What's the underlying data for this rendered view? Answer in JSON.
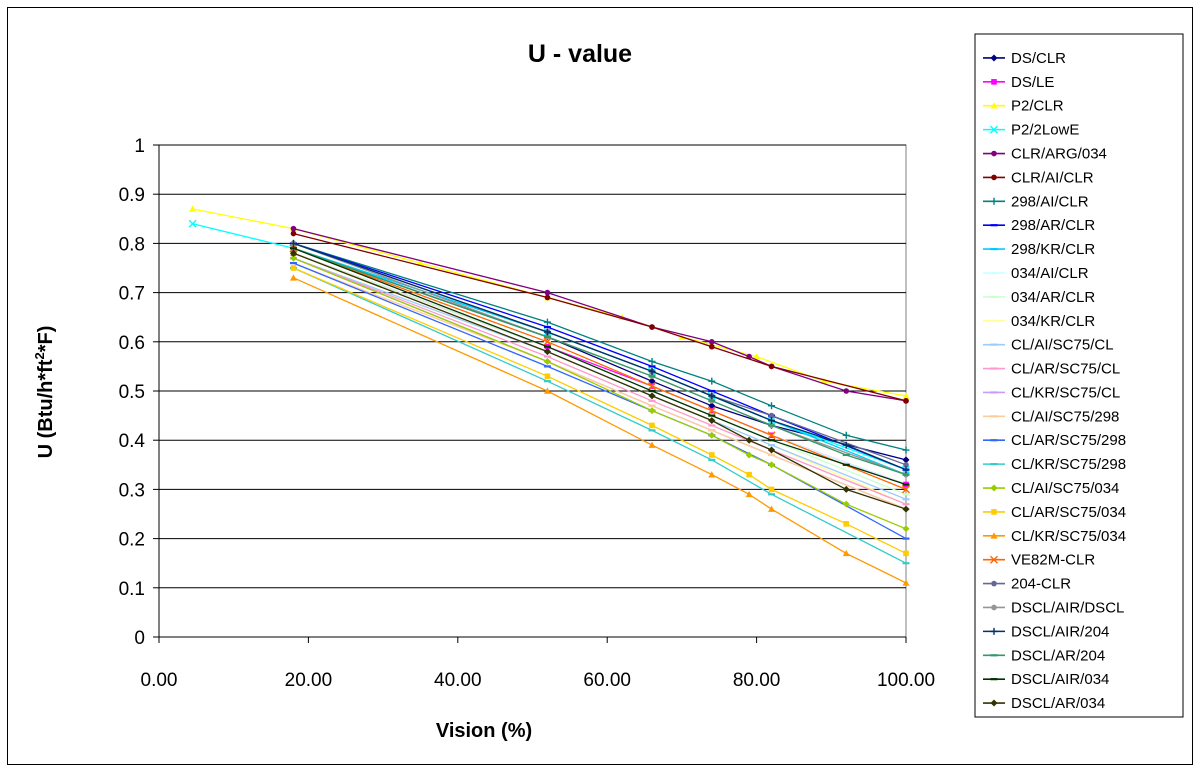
{
  "chart_data": {
    "type": "line",
    "title": "U - value",
    "xlabel": "Vision (%)",
    "ylabel_parts": [
      "U (Btu/h*ft",
      "2",
      "*F)"
    ],
    "xlim": [
      0,
      100
    ],
    "ylim": [
      0,
      1
    ],
    "x_ticks": [
      "0.00",
      "20.00",
      "40.00",
      "60.00",
      "80.00",
      "100.00"
    ],
    "y_ticks": [
      "0",
      "0.1",
      "0.2",
      "0.3",
      "0.4",
      "0.5",
      "0.6",
      "0.7",
      "0.8",
      "0.9",
      "1"
    ],
    "grid": "horizontal",
    "legend_position": "right",
    "series": [
      {
        "name": "DS/CLR",
        "color": "#000080",
        "marker": "diamond",
        "points": [
          [
            18,
            0.79
          ],
          [
            52,
            0.61
          ],
          [
            66,
            0.52
          ],
          [
            74,
            0.47
          ],
          [
            82,
            0.43
          ],
          [
            100,
            0.36
          ]
        ]
      },
      {
        "name": "DS/LE",
        "color": "#ff00ff",
        "marker": "square",
        "points": [
          [
            18,
            0.78
          ],
          [
            52,
            0.59
          ],
          [
            66,
            0.51
          ],
          [
            74,
            0.46
          ],
          [
            82,
            0.41
          ],
          [
            100,
            0.31
          ]
        ]
      },
      {
        "name": "P2/CLR",
        "color": "#ffff00",
        "marker": "triangle",
        "points": [
          [
            4.5,
            0.87
          ],
          [
            18,
            0.83
          ],
          [
            35,
            0.76
          ],
          [
            52,
            0.69
          ],
          [
            62,
            0.65
          ],
          [
            70,
            0.61
          ],
          [
            80,
            0.57
          ],
          [
            89,
            0.52
          ],
          [
            100,
            0.49
          ]
        ]
      },
      {
        "name": "P2/2LowE",
        "color": "#00ffff",
        "marker": "x",
        "points": [
          [
            4.5,
            0.84
          ],
          [
            18,
            0.79
          ],
          [
            52,
            0.62
          ],
          [
            66,
            0.54
          ],
          [
            74,
            0.49
          ],
          [
            82,
            0.44
          ],
          [
            100,
            0.34
          ]
        ]
      },
      {
        "name": "CLR/ARG/034",
        "color": "#800080",
        "marker": "circle",
        "points": [
          [
            18,
            0.83
          ],
          [
            52,
            0.7
          ],
          [
            66,
            0.63
          ],
          [
            74,
            0.6
          ],
          [
            79,
            0.57
          ],
          [
            82,
            0.55
          ],
          [
            92,
            0.5
          ],
          [
            100,
            0.48
          ]
        ]
      },
      {
        "name": "CLR/AI/CLR",
        "color": "#800000",
        "marker": "circle",
        "points": [
          [
            18,
            0.82
          ],
          [
            52,
            0.69
          ],
          [
            66,
            0.63
          ],
          [
            74,
            0.59
          ],
          [
            82,
            0.55
          ],
          [
            100,
            0.48
          ]
        ]
      },
      {
        "name": "298/AI/CLR",
        "color": "#008080",
        "marker": "plus",
        "points": [
          [
            18,
            0.8
          ],
          [
            52,
            0.64
          ],
          [
            66,
            0.56
          ],
          [
            74,
            0.52
          ],
          [
            82,
            0.47
          ],
          [
            92,
            0.41
          ],
          [
            100,
            0.38
          ]
        ]
      },
      {
        "name": "298/AR/CLR",
        "color": "#0000ff",
        "marker": "dash",
        "points": [
          [
            18,
            0.8
          ],
          [
            52,
            0.63
          ],
          [
            66,
            0.55
          ],
          [
            74,
            0.5
          ],
          [
            82,
            0.45
          ],
          [
            100,
            0.34
          ]
        ]
      },
      {
        "name": "298/KR/CLR",
        "color": "#00ccff",
        "marker": "dash",
        "points": [
          [
            18,
            0.79
          ],
          [
            52,
            0.62
          ],
          [
            66,
            0.54
          ],
          [
            74,
            0.49
          ],
          [
            82,
            0.44
          ],
          [
            100,
            0.33
          ]
        ]
      },
      {
        "name": "034/AI/CLR",
        "color": "#ccffff",
        "marker": "dash",
        "points": [
          [
            18,
            0.79
          ],
          [
            52,
            0.6
          ],
          [
            66,
            0.51
          ],
          [
            74,
            0.46
          ],
          [
            82,
            0.41
          ],
          [
            100,
            0.31
          ]
        ]
      },
      {
        "name": "034/AR/CLR",
        "color": "#ccffcc",
        "marker": "dash",
        "points": [
          [
            18,
            0.78
          ],
          [
            52,
            0.59
          ],
          [
            66,
            0.5
          ],
          [
            74,
            0.45
          ],
          [
            82,
            0.4
          ],
          [
            100,
            0.29
          ]
        ]
      },
      {
        "name": "034/KR/CLR",
        "color": "#ffff99",
        "marker": "dash",
        "points": [
          [
            18,
            0.78
          ],
          [
            52,
            0.58
          ],
          [
            66,
            0.49
          ],
          [
            74,
            0.44
          ],
          [
            82,
            0.39
          ],
          [
            100,
            0.27
          ]
        ]
      },
      {
        "name": "CL/AI/SC75/CL",
        "color": "#99ccff",
        "marker": "dash",
        "points": [
          [
            18,
            0.77
          ],
          [
            52,
            0.58
          ],
          [
            66,
            0.49
          ],
          [
            74,
            0.44
          ],
          [
            82,
            0.39
          ],
          [
            100,
            0.28
          ]
        ]
      },
      {
        "name": "CL/AR/SC75/CL",
        "color": "#ff99cc",
        "marker": "dash",
        "points": [
          [
            18,
            0.77
          ],
          [
            52,
            0.57
          ],
          [
            66,
            0.48
          ],
          [
            74,
            0.43
          ],
          [
            82,
            0.38
          ],
          [
            100,
            0.27
          ]
        ]
      },
      {
        "name": "CL/KR/SC75/CL",
        "color": "#cc99ff",
        "marker": "dash",
        "points": [
          [
            18,
            0.77
          ],
          [
            52,
            0.56
          ],
          [
            66,
            0.47
          ],
          [
            74,
            0.42
          ],
          [
            82,
            0.37
          ],
          [
            100,
            0.26
          ]
        ]
      },
      {
        "name": "CL/AI/SC75/298",
        "color": "#ffcc99",
        "marker": "dash",
        "points": [
          [
            18,
            0.76
          ],
          [
            52,
            0.56
          ],
          [
            66,
            0.47
          ],
          [
            74,
            0.42
          ],
          [
            82,
            0.37
          ],
          [
            100,
            0.26
          ]
        ]
      },
      {
        "name": "CL/AR/SC75/298",
        "color": "#3366ff",
        "marker": "dash",
        "points": [
          [
            18,
            0.76
          ],
          [
            52,
            0.55
          ],
          [
            66,
            0.46
          ],
          [
            74,
            0.41
          ],
          [
            82,
            0.35
          ],
          [
            100,
            0.2
          ]
        ]
      },
      {
        "name": "CL/KR/SC75/298",
        "color": "#33cccc",
        "marker": "dash",
        "points": [
          [
            18,
            0.75
          ],
          [
            52,
            0.52
          ],
          [
            66,
            0.42
          ],
          [
            74,
            0.36
          ],
          [
            82,
            0.29
          ],
          [
            100,
            0.15
          ]
        ]
      },
      {
        "name": "CL/AI/SC75/034",
        "color": "#99cc00",
        "marker": "diamond",
        "points": [
          [
            18,
            0.77
          ],
          [
            52,
            0.56
          ],
          [
            66,
            0.46
          ],
          [
            74,
            0.41
          ],
          [
            79,
            0.37
          ],
          [
            82,
            0.35
          ],
          [
            92,
            0.27
          ],
          [
            100,
            0.22
          ]
        ]
      },
      {
        "name": "CL/AR/SC75/034",
        "color": "#ffcc00",
        "marker": "square",
        "points": [
          [
            18,
            0.75
          ],
          [
            52,
            0.53
          ],
          [
            66,
            0.43
          ],
          [
            74,
            0.37
          ],
          [
            79,
            0.33
          ],
          [
            82,
            0.3
          ],
          [
            92,
            0.23
          ],
          [
            100,
            0.17
          ]
        ]
      },
      {
        "name": "CL/KR/SC75/034",
        "color": "#ff9900",
        "marker": "triangle",
        "points": [
          [
            18,
            0.73
          ],
          [
            52,
            0.5
          ],
          [
            66,
            0.39
          ],
          [
            74,
            0.33
          ],
          [
            79,
            0.29
          ],
          [
            82,
            0.26
          ],
          [
            92,
            0.17
          ],
          [
            100,
            0.11
          ]
        ]
      },
      {
        "name": "VE82M-CLR",
        "color": "#ff6600",
        "marker": "x",
        "points": [
          [
            18,
            0.79
          ],
          [
            52,
            0.6
          ],
          [
            66,
            0.51
          ],
          [
            74,
            0.46
          ],
          [
            82,
            0.41
          ],
          [
            100,
            0.3
          ]
        ]
      },
      {
        "name": "204-CLR",
        "color": "#666699",
        "marker": "circle",
        "points": [
          [
            18,
            0.8
          ],
          [
            52,
            0.62
          ],
          [
            66,
            0.54
          ],
          [
            74,
            0.49
          ],
          [
            82,
            0.45
          ],
          [
            100,
            0.35
          ]
        ]
      },
      {
        "name": "DSCL/AIR/DSCL",
        "color": "#969696",
        "marker": "circle",
        "points": [
          [
            18,
            0.8
          ],
          [
            52,
            0.61
          ],
          [
            66,
            0.53
          ],
          [
            74,
            0.48
          ],
          [
            82,
            0.43
          ],
          [
            100,
            0.33
          ]
        ]
      },
      {
        "name": "DSCL/AIR/204",
        "color": "#003366",
        "marker": "plus",
        "points": [
          [
            18,
            0.8
          ],
          [
            52,
            0.62
          ],
          [
            66,
            0.54
          ],
          [
            74,
            0.49
          ],
          [
            82,
            0.44
          ],
          [
            92,
            0.39
          ],
          [
            100,
            0.34
          ]
        ]
      },
      {
        "name": "DSCL/AR/204",
        "color": "#339966",
        "marker": "dash",
        "points": [
          [
            18,
            0.79
          ],
          [
            52,
            0.61
          ],
          [
            66,
            0.53
          ],
          [
            74,
            0.48
          ],
          [
            82,
            0.43
          ],
          [
            92,
            0.37
          ],
          [
            100,
            0.33
          ]
        ]
      },
      {
        "name": "DSCL/AIR/034",
        "color": "#003300",
        "marker": "dash",
        "points": [
          [
            18,
            0.79
          ],
          [
            52,
            0.59
          ],
          [
            66,
            0.5
          ],
          [
            74,
            0.45
          ],
          [
            82,
            0.4
          ],
          [
            92,
            0.35
          ],
          [
            100,
            0.31
          ]
        ]
      },
      {
        "name": "DSCL/AR/034",
        "color": "#333300",
        "marker": "diamond",
        "points": [
          [
            18,
            0.78
          ],
          [
            52,
            0.58
          ],
          [
            66,
            0.49
          ],
          [
            74,
            0.44
          ],
          [
            79,
            0.4
          ],
          [
            82,
            0.38
          ],
          [
            92,
            0.3
          ],
          [
            100,
            0.26
          ]
        ]
      }
    ]
  }
}
